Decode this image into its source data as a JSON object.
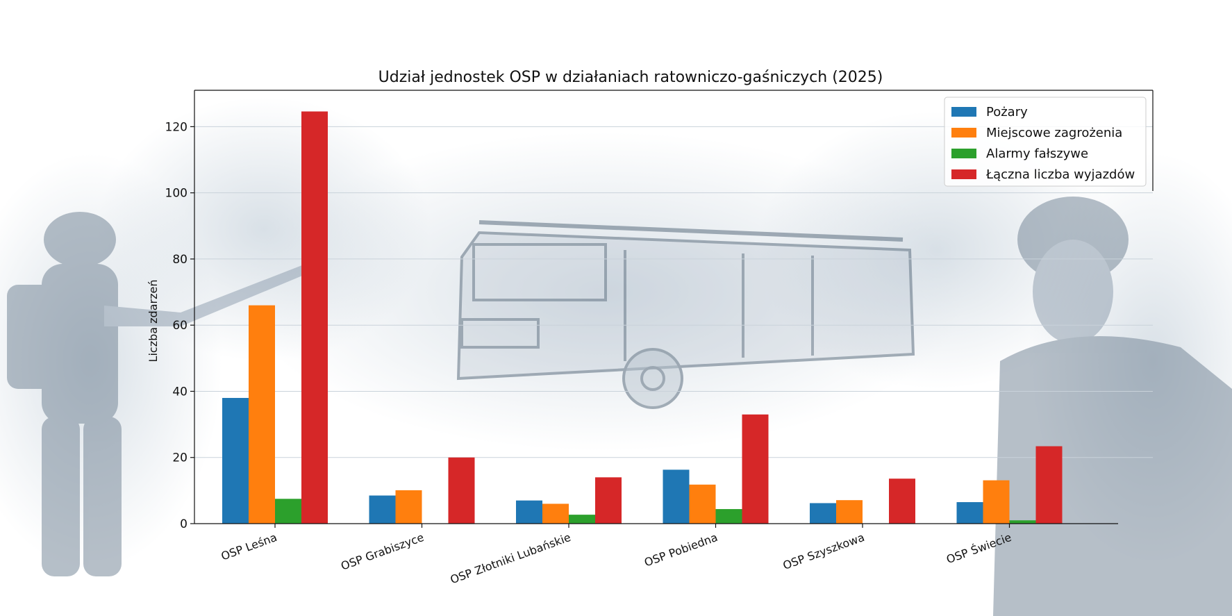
{
  "chart_data": {
    "type": "bar",
    "title": "Udział jednostek OSP w działaniach ratowniczo-gaśniczych (2025)",
    "xlabel": "",
    "ylabel": "Liczba zdarzeń",
    "ylim": [
      0,
      131
    ],
    "yticks": [
      0,
      20,
      40,
      60,
      80,
      100,
      120
    ],
    "grid": true,
    "legend_position": "top-right",
    "categories": [
      "OSP Leśna",
      "OSP Grabiszyce",
      "OSP Złotniki Lubańskie",
      "OSP Pobiedna",
      "OSP Szyszkowa",
      "OSP Świecie"
    ],
    "series": [
      {
        "name": "Pożary",
        "color": "#1f77b4",
        "values": [
          38,
          8.5,
          7,
          16.3,
          6.2,
          6.5
        ]
      },
      {
        "name": "Miejscowe zagrożenia",
        "color": "#ff7f0e",
        "values": [
          66,
          10.1,
          6,
          11.8,
          7.1,
          13.1
        ]
      },
      {
        "name": "Alarmy fałszywe",
        "color": "#2ca02c",
        "values": [
          7.5,
          0,
          2.7,
          4.4,
          0,
          1
        ]
      },
      {
        "name": "Łączna liczba wyjazdów",
        "color": "#d62728",
        "values": [
          124.6,
          20,
          14,
          33,
          13.6,
          23.4
        ]
      }
    ]
  }
}
